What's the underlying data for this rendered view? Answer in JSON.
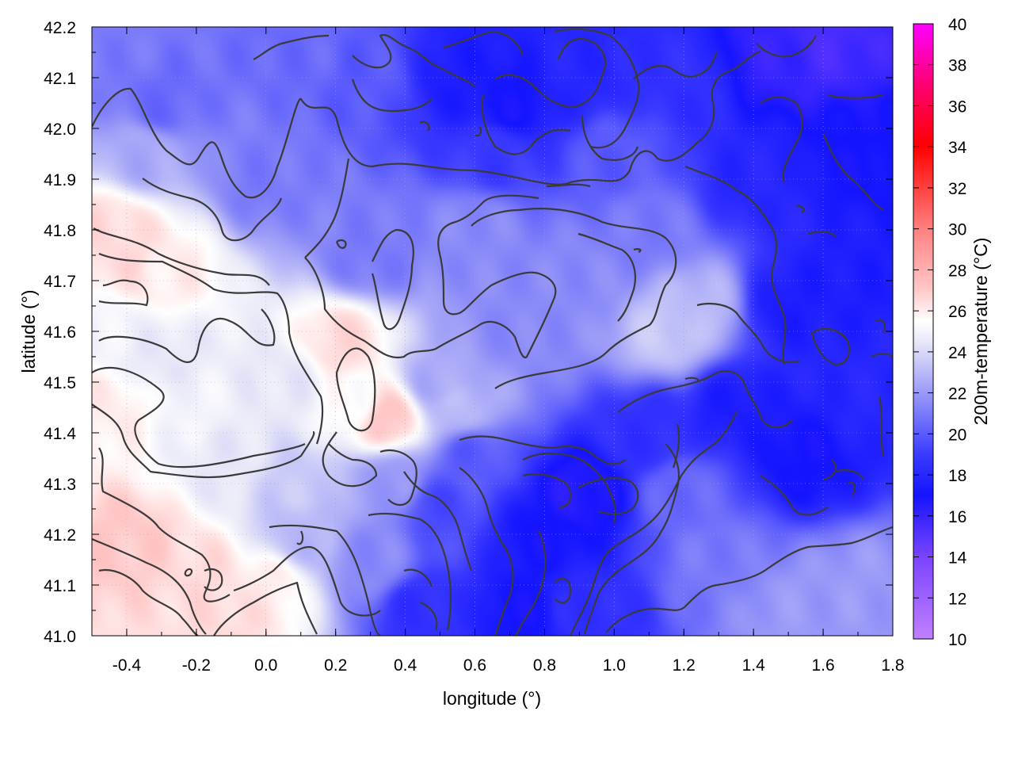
{
  "chart_data": {
    "type": "heatmap",
    "title": "",
    "xlabel": "longitude (°)",
    "ylabel": "latitude (°)",
    "colorbar_label": "200m-temperature (°C)",
    "xlim": [
      -0.5,
      1.8
    ],
    "ylim": [
      41.0,
      42.2
    ],
    "x_ticks": [
      "-0.4",
      "-0.2",
      "0.0",
      "0.2",
      "0.4",
      "0.6",
      "0.8",
      "1.0",
      "1.2",
      "1.4",
      "1.6",
      "1.8"
    ],
    "x_tick_values": [
      -0.4,
      -0.2,
      0.0,
      0.2,
      0.4,
      0.6,
      0.8,
      1.0,
      1.2,
      1.4,
      1.6,
      1.8
    ],
    "y_ticks": [
      "41.0",
      "41.1",
      "41.2",
      "41.3",
      "41.4",
      "41.5",
      "41.6",
      "41.7",
      "41.8",
      "41.9",
      "42.0",
      "42.1",
      "42.2"
    ],
    "y_tick_values": [
      41.0,
      41.1,
      41.2,
      41.3,
      41.4,
      41.5,
      41.6,
      41.7,
      41.8,
      41.9,
      42.0,
      42.1,
      42.2
    ],
    "colorbar_ticks": [
      "10",
      "12",
      "14",
      "16",
      "18",
      "20",
      "22",
      "24",
      "26",
      "28",
      "30",
      "32",
      "34",
      "36",
      "38",
      "40"
    ],
    "colorbar_tick_values": [
      10,
      12,
      14,
      16,
      18,
      20,
      22,
      24,
      26,
      28,
      30,
      32,
      34,
      36,
      38,
      40
    ],
    "colorbar_range": [
      10,
      40
    ],
    "colormap": [
      {
        "value": 10,
        "color": "#c080ff"
      },
      {
        "value": 14,
        "color": "#7a44ff"
      },
      {
        "value": 17,
        "color": "#1414ff"
      },
      {
        "value": 19,
        "color": "#3a3aff"
      },
      {
        "value": 22,
        "color": "#9a9af8"
      },
      {
        "value": 24.5,
        "color": "#e8e8f8"
      },
      {
        "value": 25.5,
        "color": "#ffffff"
      },
      {
        "value": 27,
        "color": "#ffc8c8"
      },
      {
        "value": 30,
        "color": "#ff8080"
      },
      {
        "value": 34,
        "color": "#ff0000"
      },
      {
        "value": 37,
        "color": "#ff0070"
      },
      {
        "value": 40,
        "color": "#ff00ff"
      }
    ],
    "grid": true,
    "contours": true,
    "contour_color": "#3a3a3a",
    "notes_values": {
      "temperature_anchor_points": [
        {
          "x": -0.45,
          "y": 41.8,
          "t": 26.5
        },
        {
          "x": -0.4,
          "y": 41.75,
          "t": 26.5
        },
        {
          "x": -0.3,
          "y": 41.72,
          "t": 26.0
        },
        {
          "x": -0.45,
          "y": 41.45,
          "t": 26.0
        },
        {
          "x": -0.4,
          "y": 41.18,
          "t": 27.0
        },
        {
          "x": -0.2,
          "y": 41.12,
          "t": 26.5
        },
        {
          "x": -0.1,
          "y": 41.05,
          "t": 26.5
        },
        {
          "x": 0.0,
          "y": 41.1,
          "t": 26.0
        },
        {
          "x": 0.35,
          "y": 41.43,
          "t": 27.0
        },
        {
          "x": 0.22,
          "y": 41.58,
          "t": 26.5
        },
        {
          "x": -0.3,
          "y": 41.55,
          "t": 24.5
        },
        {
          "x": -0.1,
          "y": 41.35,
          "t": 24.5
        },
        {
          "x": 0.1,
          "y": 41.3,
          "t": 23.5
        },
        {
          "x": 0.1,
          "y": 41.2,
          "t": 23.0
        },
        {
          "x": -0.3,
          "y": 42.05,
          "t": 20.5
        },
        {
          "x": 0.0,
          "y": 41.9,
          "t": 21.0
        },
        {
          "x": 0.3,
          "y": 42.1,
          "t": 20.0
        },
        {
          "x": 0.3,
          "y": 41.75,
          "t": 21.0
        },
        {
          "x": 0.6,
          "y": 41.8,
          "t": 21.5
        },
        {
          "x": 0.7,
          "y": 41.6,
          "t": 21.5
        },
        {
          "x": 0.9,
          "y": 41.7,
          "t": 21.5
        },
        {
          "x": 1.15,
          "y": 41.6,
          "t": 23.5
        },
        {
          "x": 1.25,
          "y": 41.65,
          "t": 23.0
        },
        {
          "x": 0.5,
          "y": 41.5,
          "t": 22.5
        },
        {
          "x": 0.55,
          "y": 41.45,
          "t": 23.0
        },
        {
          "x": 0.55,
          "y": 42.1,
          "t": 17.5
        },
        {
          "x": 0.7,
          "y": 42.05,
          "t": 17.0
        },
        {
          "x": 0.9,
          "y": 42.1,
          "t": 18.0
        },
        {
          "x": 1.2,
          "y": 42.1,
          "t": 18.5
        },
        {
          "x": 1.45,
          "y": 42.15,
          "t": 16.0
        },
        {
          "x": 1.6,
          "y": 42.17,
          "t": 15.5
        },
        {
          "x": 1.4,
          "y": 41.9,
          "t": 18.0
        },
        {
          "x": 1.5,
          "y": 41.65,
          "t": 17.5
        },
        {
          "x": 1.7,
          "y": 41.7,
          "t": 17.5
        },
        {
          "x": 1.7,
          "y": 41.95,
          "t": 17.0
        },
        {
          "x": 1.35,
          "y": 41.45,
          "t": 17.5
        },
        {
          "x": 1.55,
          "y": 41.35,
          "t": 17.0
        },
        {
          "x": 1.1,
          "y": 41.4,
          "t": 18.5
        },
        {
          "x": 0.9,
          "y": 41.28,
          "t": 16.5
        },
        {
          "x": 0.8,
          "y": 41.2,
          "t": 17.0
        },
        {
          "x": 0.5,
          "y": 41.25,
          "t": 19.5
        },
        {
          "x": 0.45,
          "y": 41.05,
          "t": 18.5
        },
        {
          "x": 0.75,
          "y": 41.05,
          "t": 17.0
        },
        {
          "x": 0.9,
          "y": 41.05,
          "t": 18.5
        },
        {
          "x": 1.3,
          "y": 41.15,
          "t": 21.0
        },
        {
          "x": 1.5,
          "y": 41.05,
          "t": 22.0
        },
        {
          "x": 1.7,
          "y": 41.1,
          "t": 22.0
        },
        {
          "x": 1.2,
          "y": 41.28,
          "t": 20.5
        },
        {
          "x": 0.3,
          "y": 41.15,
          "t": 21.5
        },
        {
          "x": 0.35,
          "y": 41.3,
          "t": 22.0
        },
        {
          "x": 0.6,
          "y": 41.35,
          "t": 20.0
        },
        {
          "x": 0.65,
          "y": 41.95,
          "t": 19.0
        },
        {
          "x": 0.1,
          "y": 42.15,
          "t": 20.5
        },
        {
          "x": -0.45,
          "y": 42.15,
          "t": 21.0
        },
        {
          "x": -0.35,
          "y": 41.95,
          "t": 22.5
        },
        {
          "x": -0.45,
          "y": 41.6,
          "t": 25.0
        },
        {
          "x": -0.2,
          "y": 41.45,
          "t": 25.0
        },
        {
          "x": 0.05,
          "y": 41.5,
          "t": 24.5
        },
        {
          "x": 0.25,
          "y": 41.45,
          "t": 25.5
        },
        {
          "x": 1.75,
          "y": 41.45,
          "t": 18.0
        },
        {
          "x": 1.0,
          "y": 41.95,
          "t": 20.0
        },
        {
          "x": 1.1,
          "y": 41.8,
          "t": 21.0
        }
      ]
    }
  }
}
